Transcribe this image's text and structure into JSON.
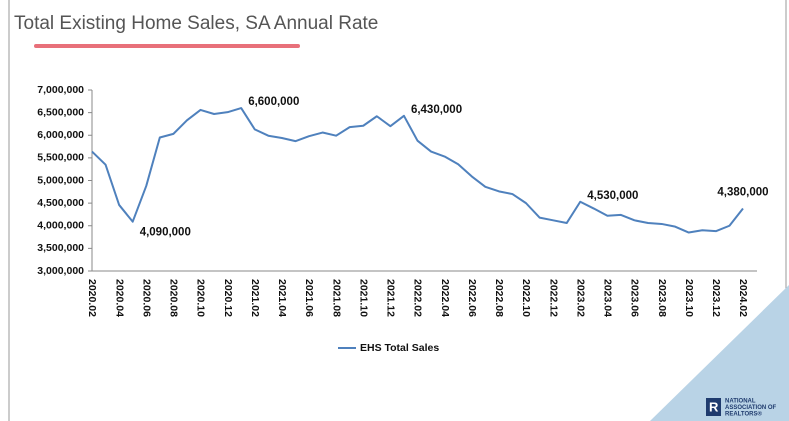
{
  "chart_data": {
    "type": "line",
    "title": "Total Existing Home Sales, SA Annual Rate",
    "categories": [
      "2020.02",
      null,
      "2020.04",
      null,
      "2020.06",
      null,
      "2020.08",
      null,
      "2020.10",
      null,
      "2020.12",
      null,
      "2021.02",
      null,
      "2021.04",
      null,
      "2021.06",
      null,
      "2021.08",
      null,
      "2021.10",
      null,
      "2021.12",
      null,
      "2022.02",
      null,
      "2022.04",
      null,
      "2022.06",
      null,
      "2022.08",
      null,
      "2022.10",
      null,
      "2022.12",
      null,
      "2023.02",
      null,
      "2023.04",
      null,
      "2023.06",
      null,
      "2023.08",
      null,
      "2023.10",
      null,
      "2023.12",
      null,
      "2024.02"
    ],
    "series": [
      {
        "name": "EHS Total Sales",
        "color": "#4f81bd",
        "values": [
          5640000,
          5350000,
          4460000,
          4090000,
          4880000,
          5950000,
          6030000,
          6330000,
          6560000,
          6470000,
          6510000,
          6600000,
          6130000,
          5990000,
          5940000,
          5870000,
          5980000,
          6060000,
          5990000,
          6180000,
          6210000,
          6420000,
          6200000,
          6430000,
          5880000,
          5640000,
          5530000,
          5360000,
          5090000,
          4860000,
          4760000,
          4700000,
          4500000,
          4180000,
          4120000,
          4060000,
          4530000,
          4380000,
          4220000,
          4240000,
          4120000,
          4060000,
          4040000,
          3980000,
          3850000,
          3900000,
          3880000,
          4000000,
          4380000
        ],
        "value_labels": [
          null,
          null,
          null,
          "4,090,000",
          null,
          null,
          null,
          null,
          null,
          null,
          null,
          "6,600,000",
          null,
          null,
          null,
          null,
          null,
          null,
          null,
          null,
          null,
          null,
          null,
          "6,430,000",
          null,
          null,
          null,
          null,
          null,
          null,
          null,
          null,
          null,
          null,
          null,
          null,
          "4,530,000",
          null,
          null,
          null,
          null,
          null,
          null,
          null,
          null,
          null,
          null,
          null,
          "4,380,000"
        ]
      }
    ],
    "ylim": [
      3000000,
      7000000
    ],
    "yticks": [
      {
        "value": 3000000,
        "label": "3,000,000"
      },
      {
        "value": 3500000,
        "label": "3,500,000"
      },
      {
        "value": 4000000,
        "label": "4,000,000"
      },
      {
        "value": 4500000,
        "label": "4,500,000"
      },
      {
        "value": 5000000,
        "label": "5,000,000"
      },
      {
        "value": 5500000,
        "label": "5,500,000"
      },
      {
        "value": 6000000,
        "label": "6,000,000"
      },
      {
        "value": 6500000,
        "label": "6,500,000"
      },
      {
        "value": 7000000,
        "label": "7,000,000"
      }
    ],
    "legend": "bottom",
    "logo": [
      "NATIONAL",
      "ASSOCIATION OF",
      "REALTORS®"
    ]
  }
}
